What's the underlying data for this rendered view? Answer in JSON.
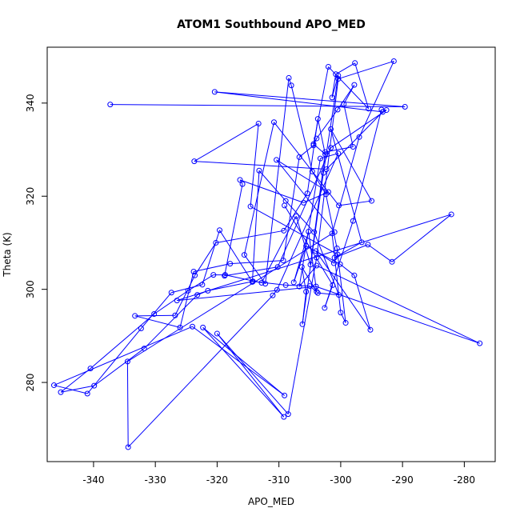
{
  "chart_data": {
    "type": "line",
    "title": "ATOM1 Southbound APO_MED",
    "xlabel": "APO_MED",
    "ylabel": "Theta (K)",
    "xlim": [
      -347.5,
      -275.0
    ],
    "ylim": [
      263.0,
      352.0
    ],
    "xticks": [
      -340,
      -330,
      -320,
      -310,
      -300,
      -290,
      -280
    ],
    "yticks": [
      280,
      300,
      320,
      340
    ],
    "grid": false,
    "series": [
      {
        "color": "#0000ff",
        "marker": "open-circle",
        "points": [
          [
            -337.3,
            339.7
          ],
          [
            -289.6,
            339.2
          ],
          [
            -320.4,
            342.4
          ],
          [
            -293.2,
            338.1
          ],
          [
            -302.3,
            325.8
          ],
          [
            -323.7,
            327.5
          ],
          [
            -313.3,
            335.6
          ],
          [
            -314.6,
            317.8
          ],
          [
            -300.5,
            307.5
          ],
          [
            -301.1,
            305.6
          ],
          [
            -304.0,
            308.2
          ],
          [
            -295.2,
            291.3
          ],
          [
            -297.8,
            303.0
          ],
          [
            -300.1,
            305.4
          ],
          [
            -305.6,
            309.3
          ],
          [
            -307.6,
            301.5
          ],
          [
            -305.2,
            312.4
          ],
          [
            -303.9,
            299.5
          ],
          [
            -306.3,
            304.8
          ],
          [
            -305.6,
            299.5
          ],
          [
            -306.2,
            292.5
          ],
          [
            -302.8,
            325.0
          ],
          [
            -300.4,
            345.9
          ],
          [
            -301.4,
            341.2
          ],
          [
            -300.8,
            346.2
          ],
          [
            -297.7,
            348.6
          ],
          [
            -295.5,
            338.8
          ],
          [
            -302.0,
            347.8
          ],
          [
            -304.4,
            331.2
          ],
          [
            -302.5,
            329.0
          ],
          [
            -303.7,
            336.6
          ],
          [
            -305.4,
            320.6
          ],
          [
            -309.2,
            312.6
          ],
          [
            -320.2,
            310.0
          ],
          [
            -323.6,
            303.0
          ],
          [
            -326.8,
            294.4
          ],
          [
            -333.3,
            294.3
          ],
          [
            -326.0,
            291.8
          ],
          [
            -323.8,
            303.8
          ],
          [
            -317.9,
            305.5
          ],
          [
            -309.3,
            306.2
          ],
          [
            -306.7,
            328.4
          ],
          [
            -304.4,
            330.9
          ],
          [
            -303.9,
            332.4
          ],
          [
            -300.5,
            338.6
          ],
          [
            -297.8,
            343.9
          ],
          [
            -299.5,
            339.8
          ],
          [
            -298.0,
            330.6
          ],
          [
            -302.5,
            329.5
          ],
          [
            -304.9,
            305.3
          ],
          [
            -307.2,
            315.7
          ],
          [
            -312.8,
            301.4
          ],
          [
            -318.7,
            303.1
          ],
          [
            -320.6,
            303.1
          ],
          [
            -324.7,
            299.7
          ],
          [
            -330.2,
            294.7
          ],
          [
            -340.5,
            283.0
          ],
          [
            -345.3,
            277.9
          ],
          [
            -339.9,
            279.3
          ],
          [
            -331.8,
            287.3
          ],
          [
            -323.2,
            298.8
          ],
          [
            -321.5,
            299.7
          ],
          [
            -314.2,
            301.7
          ],
          [
            -308.9,
            300.9
          ],
          [
            -305.0,
            300.7
          ],
          [
            -303.7,
            299.2
          ],
          [
            -300.3,
            298.8
          ],
          [
            -304.3,
            312.3
          ],
          [
            -308.9,
            319.0
          ],
          [
            -313.2,
            325.5
          ],
          [
            -314.3,
            301.6
          ],
          [
            -319.6,
            312.7
          ],
          [
            -322.4,
            301.0
          ],
          [
            -327.4,
            299.3
          ],
          [
            -332.3,
            291.6
          ],
          [
            -341.0,
            277.6
          ],
          [
            -346.4,
            279.4
          ],
          [
            -324.0,
            292.0
          ],
          [
            -309.1,
            277.2
          ],
          [
            -322.3,
            291.8
          ],
          [
            -309.2,
            272.6
          ],
          [
            -320.0,
            290.5
          ],
          [
            -308.5,
            273.2
          ],
          [
            -303.9,
            306.8
          ],
          [
            -300.4,
            345.2
          ],
          [
            -291.4,
            349.0
          ],
          [
            -297.0,
            332.7
          ],
          [
            -301.4,
            312.0
          ],
          [
            -300.0,
            295.0
          ],
          [
            -299.2,
            292.8
          ],
          [
            -300.6,
            308.8
          ],
          [
            -302.4,
            320.4
          ],
          [
            -304.6,
            325.3
          ],
          [
            -308.0,
            343.8
          ],
          [
            -308.4,
            345.4
          ],
          [
            -312.2,
            301.2
          ],
          [
            -315.6,
            307.4
          ],
          [
            -310.8,
            335.9
          ],
          [
            -300.3,
            318.0
          ],
          [
            -295.0,
            319.0
          ],
          [
            -301.6,
            334.4
          ],
          [
            -296.6,
            310.1
          ],
          [
            -301.0,
            306.8
          ],
          [
            -295.6,
            309.6
          ],
          [
            -291.7,
            305.9
          ],
          [
            -282.1,
            316.1
          ],
          [
            -326.5,
            297.6
          ],
          [
            -304.0,
            300.6
          ],
          [
            -277.5,
            288.4
          ],
          [
            -303.9,
            305.1
          ],
          [
            -306.7,
            300.6
          ],
          [
            -303.3,
            328.1
          ],
          [
            -300.4,
            329.2
          ],
          [
            -310.3,
            299.9
          ],
          [
            -311.0,
            298.7
          ],
          [
            -334.4,
            266.1
          ],
          [
            -334.5,
            284.5
          ],
          [
            -301.0,
            312.3
          ],
          [
            -310.4,
            327.8
          ],
          [
            -302.0,
            320.9
          ],
          [
            -306.0,
            318.6
          ],
          [
            -316.3,
            323.5
          ],
          [
            -315.9,
            322.6
          ],
          [
            -318.8,
            302.9
          ],
          [
            -310.2,
            304.8
          ],
          [
            -301.6,
            330.4
          ],
          [
            -292.6,
            338.5
          ],
          [
            -293.4,
            338.6
          ],
          [
            -298.0,
            314.7
          ],
          [
            -302.6,
            296.0
          ],
          [
            -301.3,
            300.9
          ],
          [
            -309.1,
            318.0
          ]
        ]
      }
    ]
  }
}
